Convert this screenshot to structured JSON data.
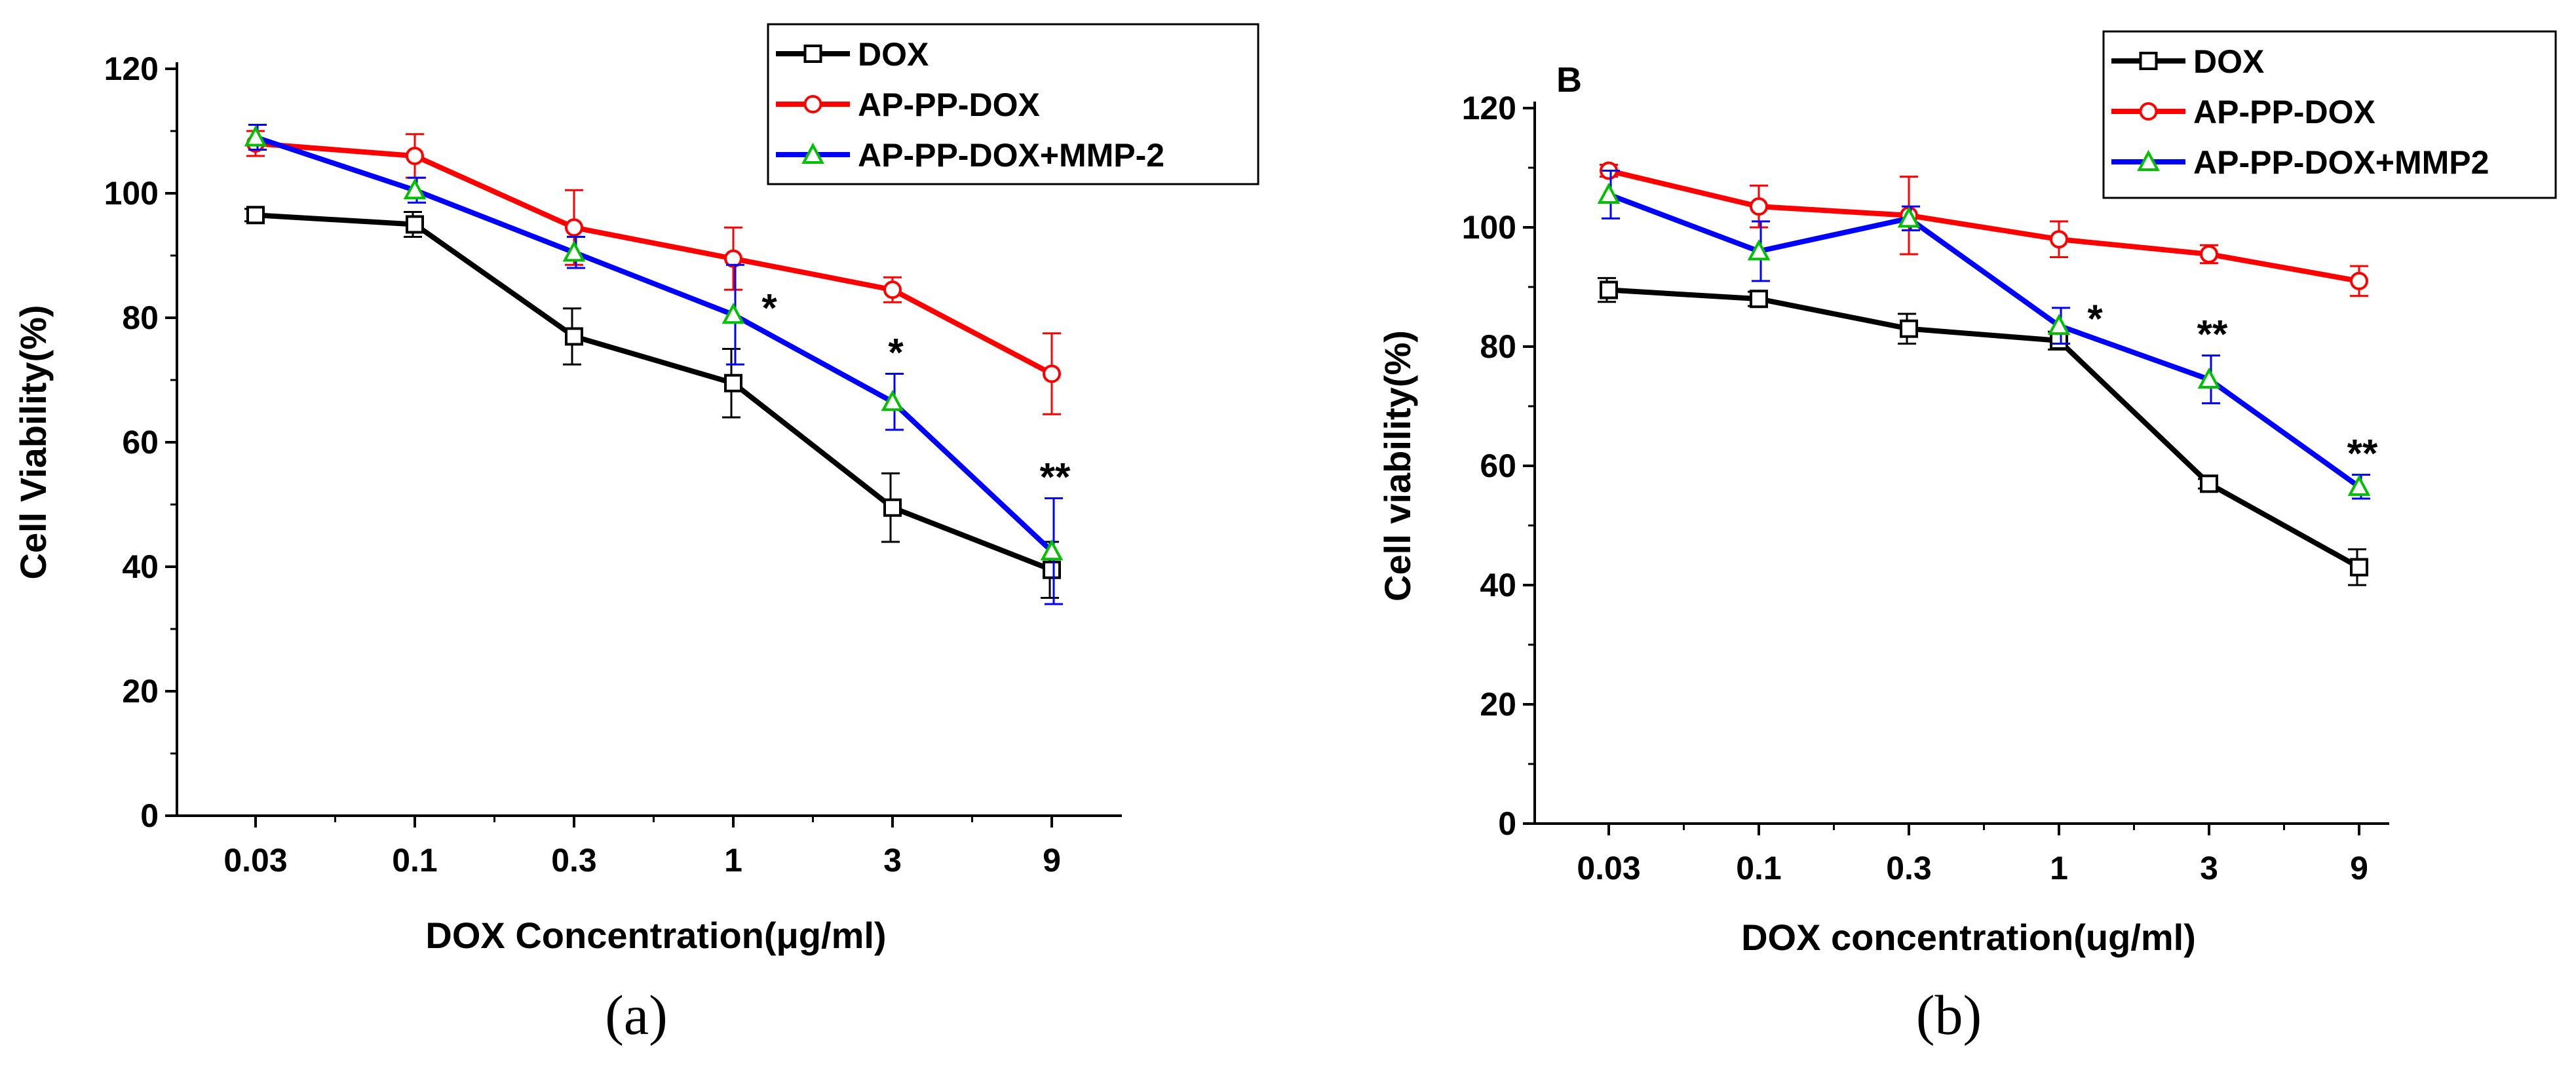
{
  "chart_data": [
    {
      "type": "line",
      "panel_label": "",
      "caption": "(a)",
      "xlabel": "DOX Concentration(μg/ml)",
      "ylabel": "Cell Viability(%)",
      "categories": [
        "0.03",
        "0.1",
        "0.3",
        "1",
        "3",
        "9"
      ],
      "ylim": [
        0,
        120
      ],
      "yticks": [
        "0",
        "20",
        "40",
        "60",
        "80",
        "100",
        "120"
      ],
      "legend_position": "top-right",
      "series": [
        {
          "name": "DOX",
          "color": "#000000",
          "marker": "square",
          "values": [
            96.5,
            95,
            77,
            69.5,
            49.5,
            39.5
          ],
          "errors": [
            1,
            2,
            4.5,
            5.5,
            5.5,
            4.5
          ]
        },
        {
          "name": "AP-PP-DOX",
          "color": "#ff0000",
          "marker": "circle",
          "values": [
            108,
            106,
            94.5,
            89.5,
            84.5,
            71
          ],
          "errors": [
            2,
            3.5,
            6,
            5,
            2,
            6.5
          ]
        },
        {
          "name": "AP-PP-DOX+MMP-2",
          "color": "#0000ff",
          "marker": "triangle",
          "values": [
            109,
            100.5,
            90.5,
            80.5,
            66.5,
            42.5
          ],
          "errors": [
            2,
            2,
            2.5,
            8,
            4.5,
            8.5
          ]
        }
      ],
      "annotations": [
        {
          "category": "1",
          "text": "*"
        },
        {
          "category": "3",
          "text": "*"
        },
        {
          "category": "9",
          "text": "**"
        }
      ]
    },
    {
      "type": "line",
      "panel_label": "B",
      "caption": "(b)",
      "xlabel": "DOX concentration(ug/ml)",
      "ylabel": "Cell viability(%)",
      "categories": [
        "0.03",
        "0.1",
        "0.3",
        "1",
        "3",
        "9"
      ],
      "ylim": [
        0,
        120
      ],
      "yticks": [
        "0",
        "20",
        "40",
        "60",
        "80",
        "100",
        "120"
      ],
      "legend_position": "top-right",
      "series": [
        {
          "name": "DOX",
          "color": "#000000",
          "marker": "square",
          "values": [
            89.5,
            88,
            83,
            81,
            57,
            43
          ],
          "errors": [
            2,
            1.2,
            2.5,
            1.5,
            0.8,
            3
          ]
        },
        {
          "name": "AP-PP-DOX",
          "color": "#ff0000",
          "marker": "circle",
          "values": [
            109.5,
            103.5,
            102,
            98,
            95.5,
            91
          ],
          "errors": [
            1,
            3.5,
            6.5,
            3,
            1.5,
            2.5
          ]
        },
        {
          "name": "AP-PP-DOX+MMP2",
          "color": "#0000ff",
          "marker": "triangle",
          "values": [
            105.5,
            96,
            101.5,
            83.5,
            74.5,
            56.5
          ],
          "errors": [
            4,
            5,
            2,
            3,
            4,
            2
          ]
        }
      ],
      "annotations": [
        {
          "category": "1",
          "text": "*"
        },
        {
          "category": "3",
          "text": "**"
        },
        {
          "category": "9",
          "text": "**"
        }
      ]
    }
  ]
}
